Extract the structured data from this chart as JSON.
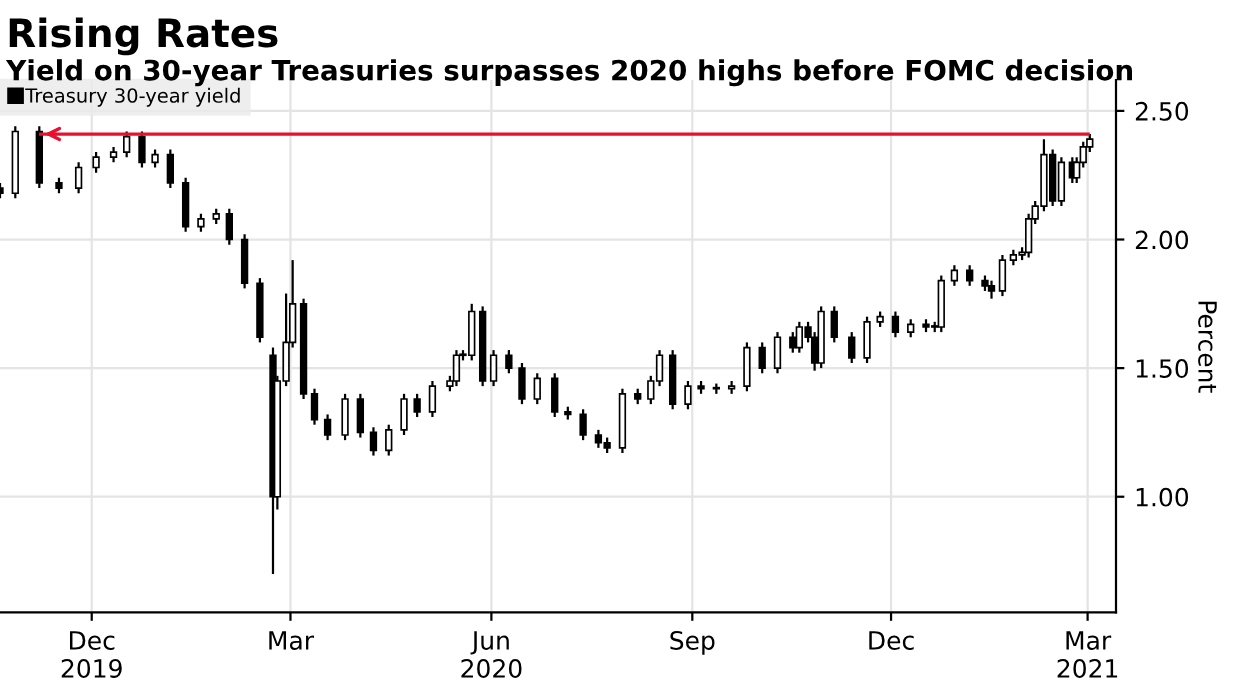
{
  "chart_data": {
    "type": "candlestick",
    "title": "Rising Rates",
    "subtitle": "Yield on 30-year Treasuries surpasses 2020 highs before FOMC decision",
    "ylabel": "Percent",
    "x": [
      "2019-11-03",
      "2019-11-10",
      "2019-11-21",
      "2019-11-30",
      "2019-12-09",
      "2019-12-17",
      "2019-12-25",
      "2019-12-31",
      "2020-01-07",
      "2020-01-13",
      "2020-01-20",
      "2020-01-27",
      "2020-02-03",
      "2020-02-10",
      "2020-02-16",
      "2020-02-23",
      "2020-03-01",
      "2020-03-07",
      "2020-03-09",
      "2020-03-13",
      "2020-03-16",
      "2020-03-21",
      "2020-03-26",
      "2020-04-01",
      "2020-04-09",
      "2020-04-16",
      "2020-04-22",
      "2020-04-29",
      "2020-05-06",
      "2020-05-12",
      "2020-05-19",
      "2020-05-27",
      "2020-05-30",
      "2020-06-02",
      "2020-06-06",
      "2020-06-11",
      "2020-06-16",
      "2020-06-23",
      "2020-06-29",
      "2020-07-06",
      "2020-07-14",
      "2020-07-20",
      "2020-07-27",
      "2020-08-03",
      "2020-08-07",
      "2020-08-14",
      "2020-08-21",
      "2020-08-27",
      "2020-08-31",
      "2020-09-06",
      "2020-09-13",
      "2020-09-19",
      "2020-09-26",
      "2020-10-03",
      "2020-10-10",
      "2020-10-17",
      "2020-10-24",
      "2020-10-31",
      "2020-11-03",
      "2020-11-07",
      "2020-11-10",
      "2020-11-13",
      "2020-11-19",
      "2020-11-27",
      "2020-12-04",
      "2020-12-10",
      "2020-12-17",
      "2020-12-24",
      "2020-12-31",
      "2021-01-04",
      "2021-01-07",
      "2021-01-13",
      "2021-01-20",
      "2021-01-27",
      "2021-01-30",
      "2021-02-04",
      "2021-02-09",
      "2021-02-13",
      "2021-02-16",
      "2021-02-19",
      "2021-02-23",
      "2021-02-27",
      "2021-03-03",
      "2021-03-08",
      "2021-03-10",
      "2021-03-13",
      "2021-03-16"
    ],
    "series": [
      {
        "name": "Treasury 30-year yield",
        "color": "#000000",
        "ohlc": [
          [
            2.2,
            2.22,
            2.16,
            2.18
          ],
          [
            2.18,
            2.44,
            2.16,
            2.42
          ],
          [
            2.42,
            2.44,
            2.2,
            2.22
          ],
          [
            2.22,
            2.24,
            2.18,
            2.2
          ],
          [
            2.2,
            2.3,
            2.18,
            2.28
          ],
          [
            2.28,
            2.34,
            2.26,
            2.32
          ],
          [
            2.32,
            2.36,
            2.3,
            2.34
          ],
          [
            2.34,
            2.42,
            2.32,
            2.4
          ],
          [
            2.4,
            2.42,
            2.28,
            2.3
          ],
          [
            2.3,
            2.35,
            2.28,
            2.33
          ],
          [
            2.33,
            2.35,
            2.2,
            2.22
          ],
          [
            2.22,
            2.24,
            2.03,
            2.05
          ],
          [
            2.05,
            2.1,
            2.03,
            2.08
          ],
          [
            2.08,
            2.12,
            2.06,
            2.1
          ],
          [
            2.1,
            2.12,
            1.98,
            2.0
          ],
          [
            2.0,
            2.02,
            1.81,
            1.83
          ],
          [
            1.83,
            1.85,
            1.6,
            1.62
          ],
          [
            1.55,
            1.58,
            0.7,
            1.0
          ],
          [
            1.0,
            1.47,
            0.95,
            1.45
          ],
          [
            1.45,
            1.79,
            1.43,
            1.6
          ],
          [
            1.6,
            1.92,
            1.58,
            1.75
          ],
          [
            1.75,
            1.77,
            1.38,
            1.4
          ],
          [
            1.4,
            1.42,
            1.28,
            1.3
          ],
          [
            1.3,
            1.32,
            1.22,
            1.24
          ],
          [
            1.24,
            1.4,
            1.22,
            1.38
          ],
          [
            1.38,
            1.4,
            1.23,
            1.25
          ],
          [
            1.25,
            1.27,
            1.16,
            1.18
          ],
          [
            1.18,
            1.28,
            1.16,
            1.26
          ],
          [
            1.26,
            1.4,
            1.24,
            1.38
          ],
          [
            1.38,
            1.4,
            1.31,
            1.33
          ],
          [
            1.33,
            1.45,
            1.31,
            1.43
          ],
          [
            1.43,
            1.47,
            1.41,
            1.45
          ],
          [
            1.45,
            1.57,
            1.43,
            1.55
          ],
          [
            1.55,
            1.57,
            1.53,
            1.55
          ],
          [
            1.55,
            1.75,
            1.53,
            1.72
          ],
          [
            1.72,
            1.74,
            1.43,
            1.45
          ],
          [
            1.45,
            1.57,
            1.43,
            1.55
          ],
          [
            1.55,
            1.57,
            1.48,
            1.5
          ],
          [
            1.5,
            1.52,
            1.36,
            1.38
          ],
          [
            1.38,
            1.48,
            1.36,
            1.46
          ],
          [
            1.46,
            1.48,
            1.31,
            1.33
          ],
          [
            1.33,
            1.35,
            1.3,
            1.32
          ],
          [
            1.32,
            1.34,
            1.22,
            1.24
          ],
          [
            1.24,
            1.26,
            1.19,
            1.21
          ],
          [
            1.21,
            1.23,
            1.17,
            1.19
          ],
          [
            1.19,
            1.42,
            1.17,
            1.4
          ],
          [
            1.4,
            1.42,
            1.36,
            1.38
          ],
          [
            1.38,
            1.47,
            1.36,
            1.45
          ],
          [
            1.45,
            1.57,
            1.43,
            1.55
          ],
          [
            1.55,
            1.57,
            1.34,
            1.36
          ],
          [
            1.36,
            1.45,
            1.34,
            1.43
          ],
          [
            1.43,
            1.45,
            1.4,
            1.42
          ],
          [
            1.42,
            1.44,
            1.4,
            1.42
          ],
          [
            1.42,
            1.45,
            1.4,
            1.43
          ],
          [
            1.43,
            1.6,
            1.41,
            1.58
          ],
          [
            1.58,
            1.6,
            1.48,
            1.5
          ],
          [
            1.5,
            1.64,
            1.48,
            1.62
          ],
          [
            1.62,
            1.64,
            1.56,
            1.58
          ],
          [
            1.58,
            1.68,
            1.56,
            1.66
          ],
          [
            1.66,
            1.68,
            1.6,
            1.62
          ],
          [
            1.62,
            1.64,
            1.49,
            1.52
          ],
          [
            1.52,
            1.74,
            1.5,
            1.72
          ],
          [
            1.72,
            1.74,
            1.6,
            1.62
          ],
          [
            1.62,
            1.64,
            1.52,
            1.54
          ],
          [
            1.54,
            1.7,
            1.52,
            1.68
          ],
          [
            1.68,
            1.72,
            1.66,
            1.7
          ],
          [
            1.7,
            1.72,
            1.62,
            1.64
          ],
          [
            1.64,
            1.69,
            1.62,
            1.67
          ],
          [
            1.67,
            1.69,
            1.64,
            1.66
          ],
          [
            1.66,
            1.68,
            1.64,
            1.66
          ],
          [
            1.66,
            1.86,
            1.64,
            1.84
          ],
          [
            1.84,
            1.9,
            1.82,
            1.88
          ],
          [
            1.88,
            1.9,
            1.82,
            1.84
          ],
          [
            1.84,
            1.86,
            1.8,
            1.82
          ],
          [
            1.82,
            1.84,
            1.77,
            1.8
          ],
          [
            1.8,
            1.94,
            1.78,
            1.92
          ],
          [
            1.92,
            1.96,
            1.9,
            1.94
          ],
          [
            1.94,
            1.97,
            1.92,
            1.95
          ],
          [
            1.95,
            2.1,
            1.93,
            2.08
          ],
          [
            2.08,
            2.15,
            2.06,
            2.13
          ],
          [
            2.13,
            2.39,
            2.11,
            2.33
          ],
          [
            2.33,
            2.35,
            2.13,
            2.15
          ],
          [
            2.15,
            2.32,
            2.13,
            2.3
          ],
          [
            2.3,
            2.32,
            2.22,
            2.24
          ],
          [
            2.24,
            2.32,
            2.22,
            2.3
          ],
          [
            2.3,
            2.38,
            2.28,
            2.36
          ],
          [
            2.36,
            2.41,
            2.34,
            2.39
          ]
        ]
      }
    ],
    "xlim": [
      "2019-11-03",
      "2021-03-28"
    ],
    "xticks": [
      {
        "value": "2019-12-15",
        "label": "Dec\n2019"
      },
      {
        "value": "2020-03-15",
        "label": "Mar"
      },
      {
        "value": "2020-06-15",
        "label": "Jun\n2020"
      },
      {
        "value": "2020-09-15",
        "label": "Sep"
      },
      {
        "value": "2020-12-15",
        "label": "Dec"
      },
      {
        "value": "2021-03-15",
        "label": "Mar\n2021"
      }
    ],
    "ylim": [
      0.55,
      2.62
    ],
    "yticks": [
      {
        "value": 1.0,
        "label": "1.00"
      },
      {
        "value": 1.5,
        "label": "1.50"
      },
      {
        "value": 2.0,
        "label": "2.00"
      },
      {
        "value": 2.5,
        "label": "2.50"
      }
    ],
    "ref_lines": [
      {
        "axis": "y",
        "value": 2.41,
        "color": "#e8112d"
      }
    ],
    "grid": true,
    "legend": "top left"
  }
}
